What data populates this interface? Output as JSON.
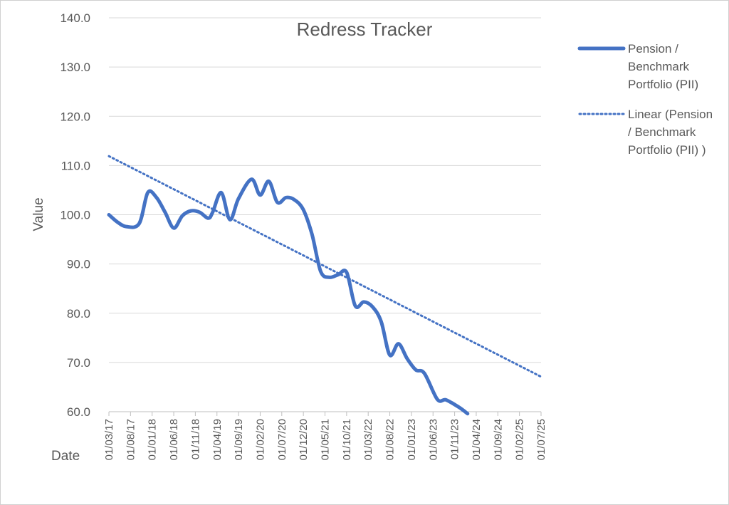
{
  "chart_data": {
    "type": "line",
    "title": "Redress Tracker",
    "xlabel": "Date",
    "ylabel": "Value",
    "ylim": [
      60,
      140
    ],
    "ytick_step": 10,
    "ytick_labels": [
      "60.0",
      "70.0",
      "80.0",
      "90.0",
      "100.0",
      "110.0",
      "120.0",
      "130.0",
      "140.0"
    ],
    "grid": true,
    "legend_position": "right",
    "x_tick_labels": [
      "01/03/17",
      "01/08/17",
      "01/01/18",
      "01/06/18",
      "01/11/18",
      "01/04/19",
      "01/09/19",
      "01/02/20",
      "01/07/20",
      "01/12/20",
      "01/05/21",
      "01/10/21",
      "01/03/22",
      "01/08/22",
      "01/01/23",
      "01/06/23",
      "01/11/23",
      "01/04/24",
      "01/09/24",
      "01/02/25",
      "01/07/25"
    ],
    "x_range": [
      "2017-03",
      "2025-07"
    ],
    "series": [
      {
        "name": "Pension / Benchmark Portfolio (PII)",
        "color": "#4472C4",
        "style": "solid",
        "points": [
          [
            "2017-03",
            100.0
          ],
          [
            "2017-05",
            98.5
          ],
          [
            "2017-07",
            97.6
          ],
          [
            "2017-10",
            98.2
          ],
          [
            "2017-12",
            104.5
          ],
          [
            "2018-02",
            103.5
          ],
          [
            "2018-04",
            100.5
          ],
          [
            "2018-06",
            97.3
          ],
          [
            "2018-08",
            99.8
          ],
          [
            "2018-10",
            100.8
          ],
          [
            "2018-12",
            100.5
          ],
          [
            "2019-02",
            99.3
          ],
          [
            "2019-03",
            100.5
          ],
          [
            "2019-05",
            104.5
          ],
          [
            "2019-07",
            99.0
          ],
          [
            "2019-09",
            103.3
          ],
          [
            "2019-12",
            107.2
          ],
          [
            "2020-02",
            104.0
          ],
          [
            "2020-04",
            106.8
          ],
          [
            "2020-06",
            102.5
          ],
          [
            "2020-08",
            103.5
          ],
          [
            "2020-10",
            103.0
          ],
          [
            "2020-12",
            101.0
          ],
          [
            "2021-02",
            96.0
          ],
          [
            "2021-04",
            88.5
          ],
          [
            "2021-06",
            87.3
          ],
          [
            "2021-08",
            87.8
          ],
          [
            "2021-10",
            88.3
          ],
          [
            "2021-12",
            81.5
          ],
          [
            "2022-02",
            82.3
          ],
          [
            "2022-04",
            81.3
          ],
          [
            "2022-06",
            78.3
          ],
          [
            "2022-08",
            71.5
          ],
          [
            "2022-10",
            73.8
          ],
          [
            "2022-12",
            70.8
          ],
          [
            "2023-02",
            68.5
          ],
          [
            "2023-04",
            67.8
          ],
          [
            "2023-07",
            62.5
          ],
          [
            "2023-09",
            62.4
          ],
          [
            "2023-12",
            60.9
          ],
          [
            "2024-02",
            59.6
          ]
        ]
      },
      {
        "name": "Linear (Pension / Benchmark Portfolio (PII) )",
        "color": "#4472C4",
        "style": "dotted",
        "points": [
          [
            "2017-03",
            111.9
          ],
          [
            "2025-07",
            67.1
          ]
        ]
      }
    ]
  }
}
